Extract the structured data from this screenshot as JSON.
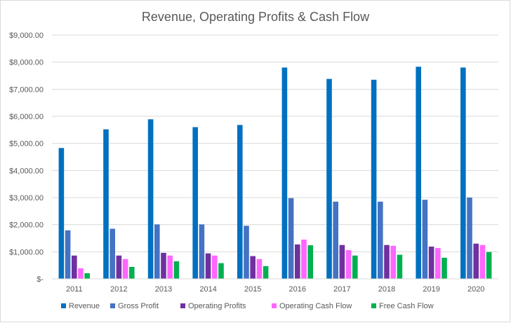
{
  "chart_data": {
    "type": "bar",
    "title": "Revenue, Operating Profits & Cash Flow",
    "xlabel": "",
    "ylabel": "",
    "categories": [
      "2011",
      "2012",
      "2013",
      "2014",
      "2015",
      "2016",
      "2017",
      "2018",
      "2019",
      "2020"
    ],
    "ylim": [
      0,
      9000
    ],
    "yticks": [
      0,
      1000,
      2000,
      3000,
      4000,
      5000,
      6000,
      7000,
      8000,
      9000
    ],
    "ytick_labels": [
      "$-",
      "$1,000.00",
      "$2,000.00",
      "$3,000.00",
      "$4,000.00",
      "$5,000.00",
      "$6,000.00",
      "$7,000.00",
      "$8,000.00",
      "$9,000.00"
    ],
    "grid": "horizontal",
    "legend_position": "bottom",
    "series": [
      {
        "name": "Revenue",
        "color": "#0070c0",
        "values": [
          4830,
          5520,
          5890,
          5600,
          5680,
          7800,
          7380,
          7350,
          7830,
          7800
        ]
      },
      {
        "name": "Gross Profit",
        "color": "#4472c4",
        "values": [
          1790,
          1850,
          2010,
          2010,
          1960,
          2980,
          2850,
          2850,
          2920,
          3000
        ]
      },
      {
        "name": "Operating Profits",
        "color": "#7030a0",
        "values": [
          860,
          860,
          960,
          940,
          840,
          1270,
          1250,
          1250,
          1190,
          1300
        ]
      },
      {
        "name": "Operating Cash Flow",
        "color": "#ff66ff",
        "values": [
          390,
          730,
          860,
          860,
          730,
          1450,
          1060,
          1220,
          1140,
          1250
        ]
      },
      {
        "name": "Free Cash Flow",
        "color": "#00b050",
        "values": [
          210,
          440,
          650,
          580,
          470,
          1240,
          860,
          890,
          780,
          990
        ]
      }
    ]
  }
}
